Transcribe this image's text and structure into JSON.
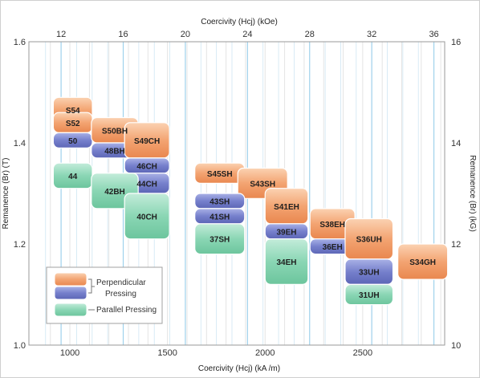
{
  "chart_data": {
    "type": "scatter",
    "title": "",
    "x_top_label": "Coercivity (Hcj) (kOe)",
    "x_bottom_label": "Coercivity (Hcj) (kA /m)",
    "y_left_label": "Remanence (Br) (T)",
    "y_right_label": "Remanence (Br) (kG)",
    "x_bottom_ticks": [
      "1000",
      "1500",
      "2000",
      "2500"
    ],
    "x_top_ticks": [
      "12",
      "16",
      "20",
      "24",
      "28",
      "32",
      "36"
    ],
    "y_left_ticks": [
      "1.0",
      "1.2",
      "1.4",
      "1.6"
    ],
    "y_right_ticks": [
      "10",
      "12",
      "14",
      "16"
    ],
    "xlim_kAm": [
      790,
      2920
    ],
    "ylim_T": [
      1.0,
      1.6
    ],
    "grid": "vertical kOe lines",
    "colors": {
      "perpendicular_orange": "#f2a070",
      "perpendicular_blue": "#6e78c4",
      "parallel_green": "#7fcfae",
      "grid_blue": "#a9d6ee",
      "grid_gray": "#e3e3e3",
      "frame": "#9a9a9a"
    },
    "series": [
      {
        "name": "Perpendicular Pressing",
        "points": [
          {
            "label": "S54",
            "hcj_min": 915,
            "hcj_max": 1115,
            "br_min": 1.44,
            "br_max": 1.49,
            "color": "orange"
          },
          {
            "label": "S52",
            "hcj_min": 915,
            "hcj_max": 1115,
            "br_min": 1.42,
            "br_max": 1.46,
            "color": "orange"
          },
          {
            "label": "50",
            "hcj_min": 915,
            "hcj_max": 1115,
            "br_min": 1.39,
            "br_max": 1.42,
            "color": "blue"
          },
          {
            "label": "S50BH",
            "hcj_min": 1110,
            "hcj_max": 1350,
            "br_min": 1.4,
            "br_max": 1.45,
            "color": "orange"
          },
          {
            "label": "48BH",
            "hcj_min": 1110,
            "hcj_max": 1350,
            "br_min": 1.37,
            "br_max": 1.4,
            "color": "blue"
          },
          {
            "label": "S49CH",
            "hcj_min": 1280,
            "hcj_max": 1510,
            "br_min": 1.37,
            "br_max": 1.44,
            "color": "orange"
          },
          {
            "label": "46CH",
            "hcj_min": 1280,
            "hcj_max": 1510,
            "br_min": 1.34,
            "br_max": 1.37,
            "color": "blue"
          },
          {
            "label": "44CH",
            "hcj_min": 1280,
            "hcj_max": 1510,
            "br_min": 1.3,
            "br_max": 1.34,
            "color": "blue"
          },
          {
            "label": "S45SH",
            "hcj_min": 1640,
            "hcj_max": 1895,
            "br_min": 1.32,
            "br_max": 1.36,
            "color": "orange"
          },
          {
            "label": "S43SH",
            "hcj_min": 1860,
            "hcj_max": 2115,
            "br_min": 1.29,
            "br_max": 1.35,
            "color": "orange"
          },
          {
            "label": "43SH",
            "hcj_min": 1640,
            "hcj_max": 1895,
            "br_min": 1.27,
            "br_max": 1.3,
            "color": "blue"
          },
          {
            "label": "41SH",
            "hcj_min": 1640,
            "hcj_max": 1895,
            "br_min": 1.24,
            "br_max": 1.27,
            "color": "blue"
          },
          {
            "label": "S41EH",
            "hcj_min": 2000,
            "hcj_max": 2220,
            "br_min": 1.24,
            "br_max": 1.31,
            "color": "orange"
          },
          {
            "label": "39EH",
            "hcj_min": 2000,
            "hcj_max": 2220,
            "br_min": 1.21,
            "br_max": 1.24,
            "color": "blue"
          },
          {
            "label": "S38EH",
            "hcj_min": 2230,
            "hcj_max": 2460,
            "br_min": 1.21,
            "br_max": 1.27,
            "color": "orange"
          },
          {
            "label": "36EH",
            "hcj_min": 2230,
            "hcj_max": 2460,
            "br_min": 1.18,
            "br_max": 1.21,
            "color": "blue"
          },
          {
            "label": "S36UH",
            "hcj_min": 2410,
            "hcj_max": 2655,
            "br_min": 1.17,
            "br_max": 1.25,
            "color": "orange"
          },
          {
            "label": "33UH",
            "hcj_min": 2410,
            "hcj_max": 2655,
            "br_min": 1.12,
            "br_max": 1.17,
            "color": "blue"
          },
          {
            "label": "S34GH",
            "hcj_min": 2680,
            "hcj_max": 2935,
            "br_min": 1.13,
            "br_max": 1.2,
            "color": "orange"
          }
        ]
      },
      {
        "name": "Parallel Pressing",
        "points": [
          {
            "label": "44",
            "hcj_min": 915,
            "hcj_max": 1115,
            "br_min": 1.31,
            "br_max": 1.36,
            "color": "green"
          },
          {
            "label": "42BH",
            "hcj_min": 1110,
            "hcj_max": 1350,
            "br_min": 1.27,
            "br_max": 1.34,
            "color": "green"
          },
          {
            "label": "40CH",
            "hcj_min": 1280,
            "hcj_max": 1510,
            "br_min": 1.21,
            "br_max": 1.3,
            "color": "green"
          },
          {
            "label": "37SH",
            "hcj_min": 1640,
            "hcj_max": 1895,
            "br_min": 1.18,
            "br_max": 1.24,
            "color": "green"
          },
          {
            "label": "34EH",
            "hcj_min": 2000,
            "hcj_max": 2220,
            "br_min": 1.12,
            "br_max": 1.21,
            "color": "green"
          },
          {
            "label": "31UH",
            "hcj_min": 2410,
            "hcj_max": 2655,
            "br_min": 1.08,
            "br_max": 1.12,
            "color": "green"
          }
        ]
      }
    ],
    "legend": {
      "placement": "bottom-left",
      "entries": [
        {
          "label": "Perpendicular Pressing",
          "swatches": [
            "orange",
            "blue"
          ]
        },
        {
          "label": "Parallel Pressing",
          "swatches": [
            "green"
          ]
        }
      ]
    }
  }
}
